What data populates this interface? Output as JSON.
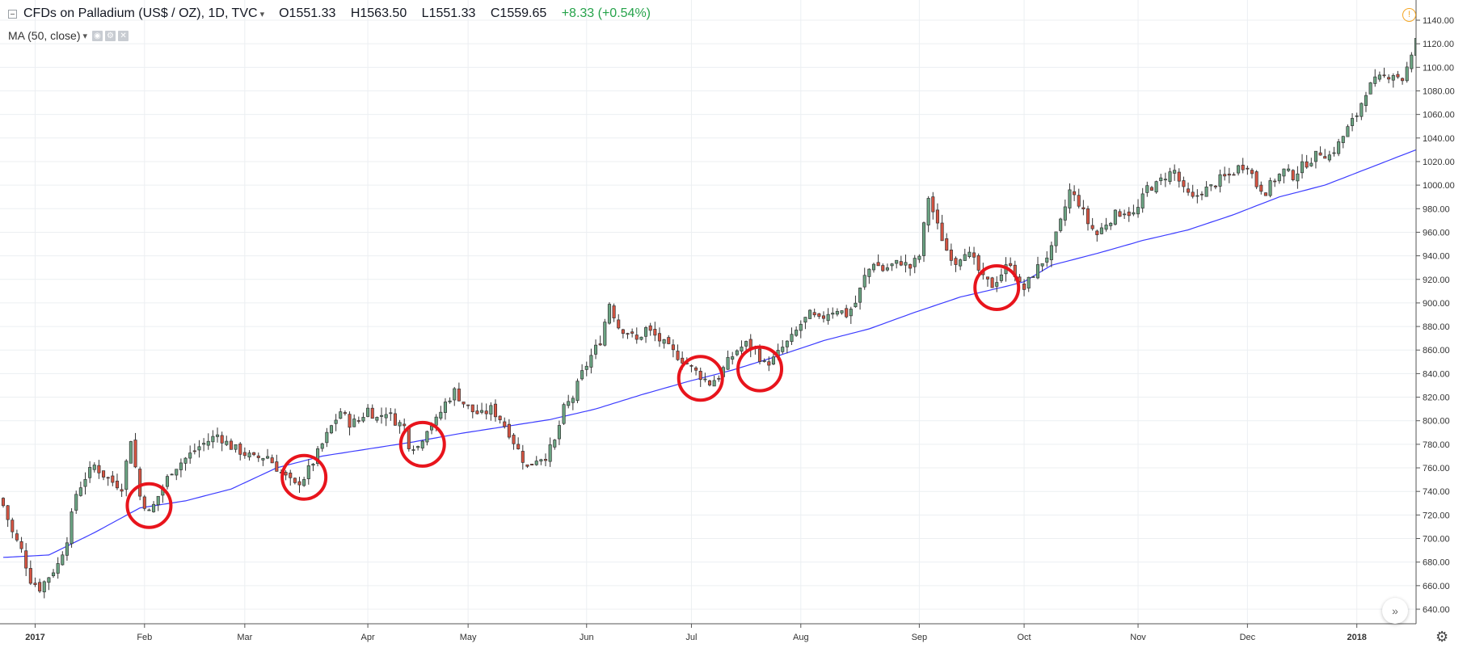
{
  "legend": {
    "symbol": "CFDs on Palladium (US$ / OZ), 1D, TVC",
    "open": "O1551.33",
    "high": "H1563.50",
    "low": "L1551.33",
    "close": "C1559.65",
    "change": "+8.33 (+0.54%)",
    "ma_label": "MA (50, close)"
  },
  "icons": [
    "collapse-icon",
    "chevron-down-icon",
    "eye-icon",
    "gear-icon",
    "close-icon",
    "warning-icon",
    "double-chevron-right-icon",
    "settings-gear-icon"
  ],
  "colors": {
    "up": "#6ba583",
    "down": "#d75442",
    "ma": "#3c3cff",
    "circle": "#e8141c",
    "grid": "#eceff2"
  },
  "chart_data": {
    "type": "candlestick",
    "y_range": [
      630,
      1150
    ],
    "y_ticks": [
      640,
      660,
      680,
      700,
      720,
      740,
      760,
      780,
      800,
      820,
      840,
      860,
      880,
      900,
      920,
      940,
      960,
      980,
      1000,
      1020,
      1040,
      1060,
      1080,
      1100,
      1120,
      1140
    ],
    "x_ticks": [
      {
        "label": "2017",
        "day": 7,
        "bold": true
      },
      {
        "label": "Feb",
        "day": 31
      },
      {
        "label": "Mar",
        "day": 53
      },
      {
        "label": "Apr",
        "day": 80
      },
      {
        "label": "May",
        "day": 102
      },
      {
        "label": "Jun",
        "day": 128
      },
      {
        "label": "Jul",
        "day": 151
      },
      {
        "label": "Aug",
        "day": 175
      },
      {
        "label": "Sep",
        "day": 201
      },
      {
        "label": "Oct",
        "day": 224
      },
      {
        "label": "Nov",
        "day": 249
      },
      {
        "label": "Dec",
        "day": 273
      },
      {
        "label": "2018",
        "day": 297,
        "bold": true
      }
    ],
    "n_days": 311,
    "close_anchors": [
      [
        0,
        728
      ],
      [
        2,
        705
      ],
      [
        4,
        690
      ],
      [
        6,
        665
      ],
      [
        8,
        658
      ],
      [
        10,
        668
      ],
      [
        12,
        678
      ],
      [
        14,
        700
      ],
      [
        16,
        738
      ],
      [
        18,
        752
      ],
      [
        20,
        762
      ],
      [
        22,
        754
      ],
      [
        24,
        748
      ],
      [
        26,
        744
      ],
      [
        28,
        785
      ],
      [
        30,
        736
      ],
      [
        32,
        722
      ],
      [
        33,
        728
      ],
      [
        35,
        744
      ],
      [
        37,
        758
      ],
      [
        40,
        768
      ],
      [
        43,
        778
      ],
      [
        47,
        788
      ],
      [
        50,
        778
      ],
      [
        53,
        772
      ],
      [
        55,
        768
      ],
      [
        58,
        770
      ],
      [
        60,
        760
      ],
      [
        62,
        752
      ],
      [
        64,
        745
      ],
      [
        66,
        752
      ],
      [
        68,
        765
      ],
      [
        70,
        780
      ],
      [
        72,
        795
      ],
      [
        74,
        808
      ],
      [
        76,
        798
      ],
      [
        78,
        800
      ],
      [
        80,
        810
      ],
      [
        82,
        802
      ],
      [
        84,
        808
      ],
      [
        86,
        800
      ],
      [
        88,
        795
      ],
      [
        89,
        780
      ],
      [
        91,
        778
      ],
      [
        93,
        794
      ],
      [
        95,
        800
      ],
      [
        97,
        815
      ],
      [
        99,
        825
      ],
      [
        101,
        815
      ],
      [
        103,
        808
      ],
      [
        105,
        805
      ],
      [
        107,
        810
      ],
      [
        109,
        802
      ],
      [
        111,
        790
      ],
      [
        113,
        775
      ],
      [
        115,
        760
      ],
      [
        117,
        768
      ],
      [
        119,
        770
      ],
      [
        121,
        782
      ],
      [
        123,
        810
      ],
      [
        125,
        820
      ],
      [
        127,
        840
      ],
      [
        129,
        855
      ],
      [
        131,
        868
      ],
      [
        133,
        900
      ],
      [
        135,
        880
      ],
      [
        137,
        875
      ],
      [
        139,
        868
      ],
      [
        141,
        878
      ],
      [
        143,
        872
      ],
      [
        145,
        865
      ],
      [
        147,
        858
      ],
      [
        149,
        852
      ],
      [
        151,
        845
      ],
      [
        153,
        838
      ],
      [
        155,
        832
      ],
      [
        157,
        838
      ],
      [
        159,
        850
      ],
      [
        161,
        860
      ],
      [
        163,
        865
      ],
      [
        165,
        860
      ],
      [
        167,
        848
      ],
      [
        169,
        852
      ],
      [
        171,
        862
      ],
      [
        173,
        870
      ],
      [
        175,
        882
      ],
      [
        177,
        890
      ],
      [
        179,
        885
      ],
      [
        181,
        892
      ],
      [
        183,
        895
      ],
      [
        185,
        890
      ],
      [
        187,
        900
      ],
      [
        189,
        922
      ],
      [
        191,
        935
      ],
      [
        193,
        928
      ],
      [
        195,
        932
      ],
      [
        197,
        935
      ],
      [
        199,
        930
      ],
      [
        201,
        940
      ],
      [
        203,
        990
      ],
      [
        205,
        965
      ],
      [
        207,
        945
      ],
      [
        209,
        935
      ],
      [
        211,
        945
      ],
      [
        213,
        935
      ],
      [
        215,
        920
      ],
      [
        217,
        915
      ],
      [
        219,
        925
      ],
      [
        221,
        935
      ],
      [
        223,
        915
      ],
      [
        224,
        912
      ],
      [
        226,
        925
      ],
      [
        228,
        935
      ],
      [
        230,
        945
      ],
      [
        232,
        968
      ],
      [
        234,
        995
      ],
      [
        236,
        985
      ],
      [
        238,
        968
      ],
      [
        240,
        958
      ],
      [
        242,
        968
      ],
      [
        244,
        975
      ],
      [
        246,
        978
      ],
      [
        248,
        975
      ],
      [
        249,
        980
      ],
      [
        251,
        998
      ],
      [
        253,
        1000
      ],
      [
        255,
        1008
      ],
      [
        257,
        1012
      ],
      [
        259,
        995
      ],
      [
        261,
        988
      ],
      [
        263,
        995
      ],
      [
        265,
        998
      ],
      [
        267,
        1005
      ],
      [
        269,
        1008
      ],
      [
        271,
        1015
      ],
      [
        273,
        1018
      ],
      [
        275,
        1000
      ],
      [
        277,
        995
      ],
      [
        279,
        1005
      ],
      [
        281,
        1012
      ],
      [
        283,
        1008
      ],
      [
        285,
        1016
      ],
      [
        287,
        1022
      ],
      [
        289,
        1028
      ],
      [
        291,
        1025
      ],
      [
        293,
        1035
      ],
      [
        295,
        1048
      ],
      [
        297,
        1060
      ],
      [
        299,
        1080
      ],
      [
        301,
        1088
      ],
      [
        303,
        1092
      ],
      [
        305,
        1095
      ],
      [
        307,
        1090
      ],
      [
        309,
        1108
      ],
      [
        310,
        1125
      ]
    ],
    "ma_anchors": [
      [
        0,
        684
      ],
      [
        10,
        686
      ],
      [
        20,
        705
      ],
      [
        30,
        726
      ],
      [
        40,
        732
      ],
      [
        50,
        742
      ],
      [
        60,
        760
      ],
      [
        70,
        770
      ],
      [
        80,
        776
      ],
      [
        90,
        782
      ],
      [
        100,
        789
      ],
      [
        110,
        795
      ],
      [
        120,
        801
      ],
      [
        130,
        810
      ],
      [
        140,
        822
      ],
      [
        150,
        833
      ],
      [
        160,
        843
      ],
      [
        170,
        855
      ],
      [
        180,
        868
      ],
      [
        190,
        878
      ],
      [
        200,
        892
      ],
      [
        210,
        905
      ],
      [
        220,
        914
      ],
      [
        224,
        918
      ],
      [
        230,
        932
      ],
      [
        240,
        942
      ],
      [
        250,
        953
      ],
      [
        260,
        962
      ],
      [
        270,
        975
      ],
      [
        280,
        990
      ],
      [
        290,
        1000
      ],
      [
        300,
        1015
      ],
      [
        310,
        1030
      ]
    ],
    "highlights": [
      {
        "day": 32,
        "value": 728
      },
      {
        "day": 66,
        "value": 752
      },
      {
        "day": 92,
        "value": 780
      },
      {
        "day": 153,
        "value": 836
      },
      {
        "day": 166,
        "value": 844
      },
      {
        "day": 218,
        "value": 913
      }
    ]
  }
}
